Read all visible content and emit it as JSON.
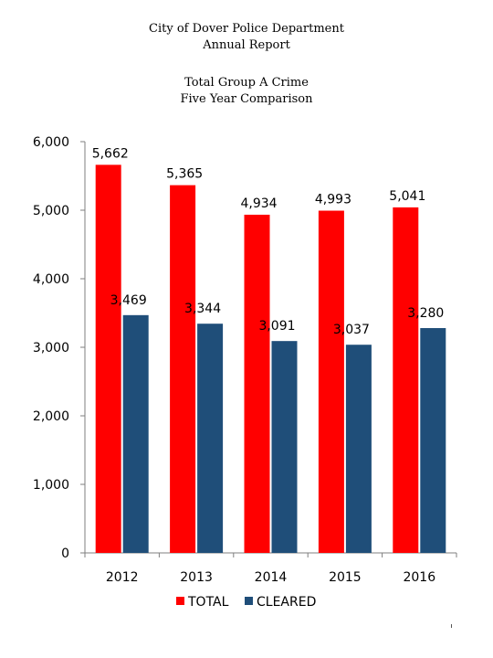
{
  "header": {
    "line1": "City of Dover Police Department",
    "line2": "Annual Report",
    "line3": "Total Group A Crime",
    "line4": "Five Year Comparison"
  },
  "chart_data": {
    "type": "bar",
    "title": "Total Group A Crime Five Year Comparison",
    "xlabel": "",
    "ylabel": "",
    "categories": [
      "2012",
      "2013",
      "2014",
      "2015",
      "2016"
    ],
    "series": [
      {
        "name": "TOTAL",
        "color": "#ff0000",
        "values": [
          5662,
          5365,
          4934,
          4993,
          5041
        ],
        "labels": [
          "5,662",
          "5,365",
          "4,934",
          "4,993",
          "5,041"
        ]
      },
      {
        "name": "CLEARED",
        "color": "#1f4e79",
        "values": [
          3469,
          3344,
          3091,
          3037,
          3280
        ],
        "labels": [
          "3,469",
          "3,344",
          "3,091",
          "3,037",
          "3,280"
        ]
      }
    ],
    "ylim": [
      0,
      6000
    ],
    "yticks": [
      0,
      1000,
      2000,
      3000,
      4000,
      5000,
      6000
    ],
    "ytick_labels": [
      "0",
      "1,000",
      "2,000",
      "3,000",
      "4,000",
      "5,000",
      "6,000"
    ],
    "grid": false,
    "legend_position": "bottom-center"
  }
}
